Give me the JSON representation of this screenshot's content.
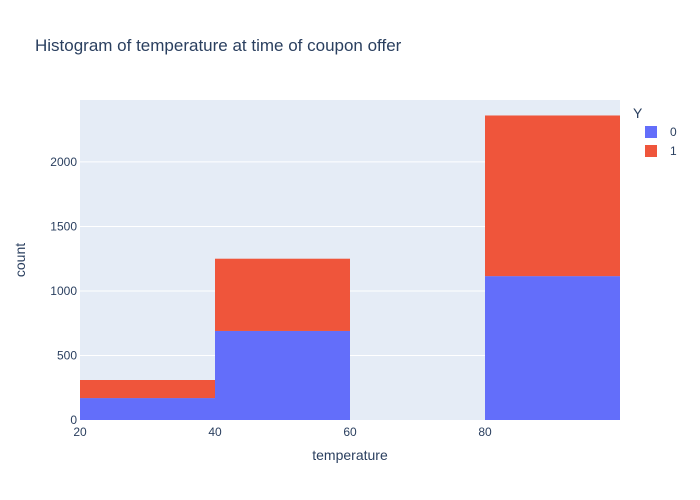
{
  "chart_data": {
    "type": "bar",
    "title": "Histogram of temperature at time of coupon offer",
    "xlabel": "temperature",
    "ylabel": "count",
    "barmode": "stack",
    "bins": [
      {
        "start": 20,
        "end": 40
      },
      {
        "start": 40,
        "end": 60
      },
      {
        "start": 60,
        "end": 80
      },
      {
        "start": 80,
        "end": 100
      }
    ],
    "series": [
      {
        "name": "0",
        "color": "#636efa",
        "values": [
          170,
          690,
          0,
          1115
        ]
      },
      {
        "name": "1",
        "color": "#ef553b",
        "values": [
          140,
          560,
          0,
          1245
        ]
      }
    ],
    "xlim": [
      20,
      100
    ],
    "ylim": [
      0,
      2480
    ],
    "xticks": [
      20,
      40,
      60,
      80
    ],
    "yticks": [
      0,
      500,
      1000,
      1500,
      2000
    ],
    "legend": {
      "title": "Y",
      "position": "top-right"
    },
    "grid": true,
    "plot_bgcolor": "#e5ecf6"
  }
}
